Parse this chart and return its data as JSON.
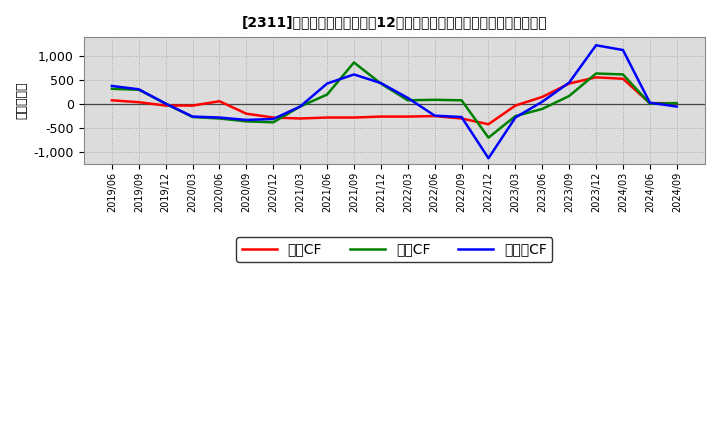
{
  "title": "[2311]　キャッシュフローの12か月移動合計の対前年同期増減額の推移",
  "ylabel": "（百万円）",
  "background_color": "#ffffff",
  "grid_color": "#aaaaaa",
  "plot_bg_color": "#dcdcdc",
  "x_labels": [
    "2019/06",
    "2019/09",
    "2019/12",
    "2020/03",
    "2020/06",
    "2020/09",
    "2020/12",
    "2021/03",
    "2021/06",
    "2021/09",
    "2021/12",
    "2022/03",
    "2022/06",
    "2022/09",
    "2022/12",
    "2023/03",
    "2023/06",
    "2023/09",
    "2023/12",
    "2024/03",
    "2024/06",
    "2024/09"
  ],
  "operating_cf": [
    80,
    40,
    -30,
    -30,
    60,
    -200,
    -280,
    -300,
    -280,
    -280,
    -260,
    -260,
    -250,
    -300,
    -420,
    -30,
    150,
    430,
    560,
    530,
    20,
    20
  ],
  "investing_cf": [
    320,
    300,
    10,
    -270,
    -300,
    -360,
    -380,
    -50,
    200,
    870,
    430,
    80,
    90,
    80,
    -700,
    -250,
    -100,
    170,
    640,
    620,
    10,
    20
  ],
  "free_cf": [
    380,
    310,
    10,
    -260,
    -280,
    -330,
    -310,
    -50,
    430,
    620,
    440,
    130,
    -240,
    -270,
    -1130,
    -280,
    50,
    450,
    1230,
    1130,
    30,
    -50
  ],
  "operating_color": "#ff0000",
  "investing_color": "#008000",
  "free_color": "#0000ff",
  "ylim": [
    -1250,
    1400
  ],
  "yticks": [
    -1000,
    -500,
    0,
    500,
    1000
  ],
  "legend_labels": [
    "営業CF",
    "投資CF",
    "フリーCF"
  ]
}
